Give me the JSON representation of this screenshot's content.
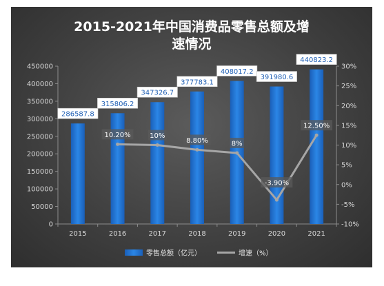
{
  "chart_data": {
    "type": "bar",
    "title": "2015-2021年中国消费品零售总额及增速情况",
    "title_lines": [
      "2015-2021年中国消费品零售总额及增",
      "速情况"
    ],
    "categories": [
      "2015",
      "2016",
      "2017",
      "2018",
      "2019",
      "2020",
      "2021"
    ],
    "series": [
      {
        "name": "零售总额（亿元）",
        "type": "bar",
        "axis": "left",
        "color": "#1f6fd0",
        "values": [
          286587.8,
          315806.2,
          347326.7,
          377783.1,
          408017.2,
          391980.6,
          440823.2
        ],
        "labels": [
          "286587.8",
          "315806.2",
          "347326.7",
          "377783.1",
          "408017.2",
          "391980.6",
          "440823.2"
        ]
      },
      {
        "name": "增速（%）",
        "type": "line",
        "axis": "right",
        "color": "#a6a6a6",
        "values": [
          null,
          10.2,
          10,
          8.8,
          8,
          -3.9,
          12.5
        ],
        "labels": [
          "",
          "10.20%",
          "10%",
          "8.80%",
          "8%",
          "-3.90%",
          "12.50%"
        ]
      }
    ],
    "y_left": {
      "min": 0,
      "max": 450000,
      "ticks": [
        0,
        50000,
        100000,
        150000,
        200000,
        250000,
        300000,
        350000,
        400000,
        450000
      ],
      "tick_labels": [
        "0",
        "50000",
        "100000",
        "150000",
        "200000",
        "250000",
        "300000",
        "350000",
        "400000",
        "450000"
      ]
    },
    "y_right": {
      "min": -10,
      "max": 30,
      "ticks": [
        -10,
        -5,
        0,
        5,
        10,
        15,
        20,
        25,
        30
      ],
      "tick_labels": [
        "-10%",
        "-5%",
        "0%",
        "5%",
        "10%",
        "15%",
        "20%",
        "25%",
        "30%"
      ]
    },
    "legend_position": "bottom",
    "grid": false
  }
}
